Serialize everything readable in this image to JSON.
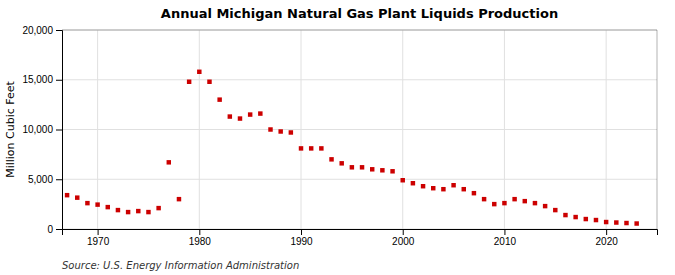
{
  "chart_data": {
    "type": "scatter",
    "title": "Annual Michigan Natural Gas Plant Liquids Production",
    "y_label": "Million Cubic Feet",
    "source": "Source: U.S. Energy Information Administration",
    "color": "#cc0000",
    "marker": "square",
    "grid": true,
    "xlim": [
      1966.5,
      2025
    ],
    "ylim": [
      0,
      20000
    ],
    "xticks": [
      1970,
      1980,
      1990,
      2000,
      2010,
      2020
    ],
    "yticks": [
      0,
      {
        "value": 5000,
        "label": "5,000"
      },
      {
        "value": 10000,
        "label": "10,000"
      },
      {
        "value": 15000,
        "label": "15,000"
      },
      {
        "value": 20000,
        "label": "20,000"
      }
    ],
    "x": [
      1967,
      1968,
      1969,
      1970,
      1971,
      1972,
      1973,
      1974,
      1975,
      1976,
      1977,
      1978,
      1979,
      1980,
      1981,
      1982,
      1983,
      1984,
      1985,
      1986,
      1987,
      1988,
      1989,
      1990,
      1991,
      1992,
      1993,
      1994,
      1995,
      1996,
      1997,
      1998,
      1999,
      2000,
      2001,
      2002,
      2003,
      2004,
      2005,
      2006,
      2007,
      2008,
      2009,
      2010,
      2011,
      2012,
      2013,
      2014,
      2015,
      2016,
      2017,
      2018,
      2019,
      2020,
      2021,
      2022,
      2023
    ],
    "values": [
      3400,
      3150,
      2600,
      2450,
      2200,
      1900,
      1700,
      1800,
      1700,
      2100,
      6700,
      3000,
      14800,
      15800,
      14800,
      13000,
      11300,
      11100,
      11500,
      11600,
      10000,
      9800,
      9700,
      8100,
      8100,
      8100,
      7000,
      6600,
      6200,
      6200,
      6000,
      5900,
      5800,
      4900,
      4600,
      4300,
      4100,
      4000,
      4400,
      4000,
      3600,
      3000,
      2500,
      2600,
      3000,
      2800,
      2600,
      2300,
      1900,
      1400,
      1200,
      1000,
      900,
      700,
      650,
      600,
      550
    ]
  }
}
